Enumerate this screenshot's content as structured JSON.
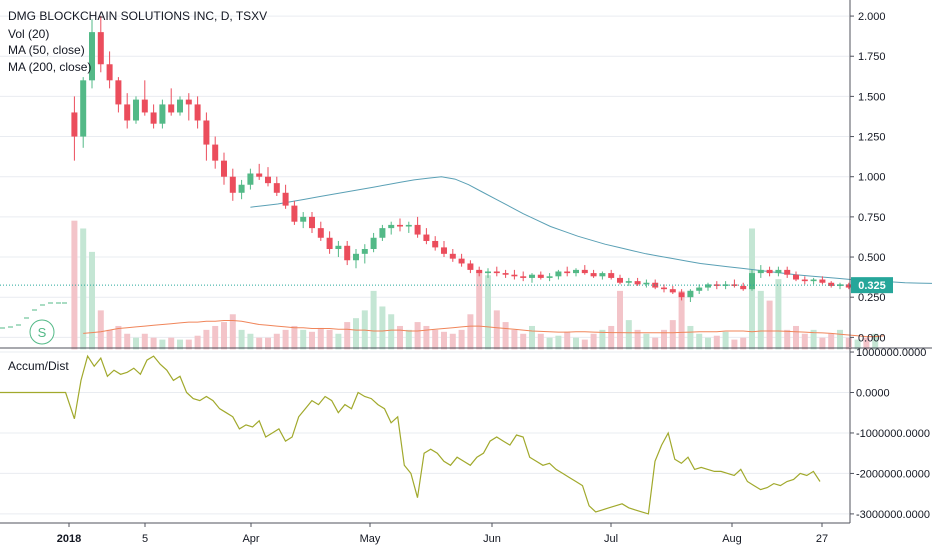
{
  "main_chart": {
    "title": "DMG BLOCKCHAIN SOLUTIONS INC, D, TSXV",
    "indicators": [
      "Vol (20)",
      "MA (50, close)",
      "MA (200, close)"
    ],
    "last_price_label": "0.325",
    "last_price": 0.325,
    "y_ticks": [
      "2.000",
      "1.750",
      "1.500",
      "1.250",
      "1.000",
      "0.750",
      "0.500",
      "0.250",
      "0.000"
    ],
    "y_tick_values": [
      2.0,
      1.75,
      1.5,
      1.25,
      1.0,
      0.75,
      0.5,
      0.25,
      0.0
    ],
    "watermark_icon": "tradingview-s-icon"
  },
  "sub_chart": {
    "title": "Accum/Dist",
    "y_ticks": [
      "1000000.0000",
      "0.0000",
      "-1000000.0000",
      "-2000000.0000",
      "-3000000.0000"
    ],
    "y_tick_values": [
      1000000,
      0,
      -1000000,
      -2000000,
      -3000000
    ]
  },
  "x_axis": {
    "labels": [
      "2018",
      "5",
      "Apr",
      "May",
      "Jun",
      "Jul",
      "Aug",
      "27"
    ],
    "bold_label_index": 0
  },
  "colors": {
    "up": "#53b987",
    "down": "#eb4d5c",
    "up_volume": "#c4e6d4",
    "down_volume": "#f3c4c9",
    "ma50": "#f0855a",
    "ma200": "#5aa0b5",
    "accum": "#a1a92c",
    "price_badge": "#26a69a",
    "grid": "#e9ecf1",
    "axis": "#50535e"
  },
  "chart_data": [
    {
      "type": "candlestick",
      "title": "DMG BLOCKCHAIN SOLUTIONS INC, D, TSXV",
      "y_range": [
        -0.06,
        2.1
      ],
      "ohlc": [
        [
          1.4,
          1.5,
          1.1,
          1.25
        ],
        [
          1.25,
          1.62,
          1.18,
          1.6
        ],
        [
          1.6,
          1.98,
          1.55,
          1.9
        ],
        [
          1.9,
          2.0,
          1.65,
          1.7
        ],
        [
          1.7,
          1.78,
          1.55,
          1.6
        ],
        [
          1.6,
          1.62,
          1.4,
          1.45
        ],
        [
          1.45,
          1.52,
          1.3,
          1.35
        ],
        [
          1.35,
          1.5,
          1.33,
          1.48
        ],
        [
          1.48,
          1.6,
          1.38,
          1.4
        ],
        [
          1.4,
          1.45,
          1.3,
          1.33
        ],
        [
          1.33,
          1.48,
          1.3,
          1.45
        ],
        [
          1.45,
          1.55,
          1.38,
          1.4
        ],
        [
          1.4,
          1.5,
          1.38,
          1.48
        ],
        [
          1.48,
          1.52,
          1.35,
          1.45
        ],
        [
          1.45,
          1.5,
          1.3,
          1.35
        ],
        [
          1.35,
          1.4,
          1.1,
          1.2
        ],
        [
          1.2,
          1.25,
          1.05,
          1.1
        ],
        [
          1.1,
          1.15,
          0.95,
          1.0
        ],
        [
          1.0,
          1.05,
          0.85,
          0.9
        ],
        [
          0.9,
          0.98,
          0.86,
          0.95
        ],
        [
          0.95,
          1.05,
          0.92,
          1.02
        ],
        [
          1.02,
          1.08,
          0.98,
          1.0
        ],
        [
          1.0,
          1.06,
          0.94,
          0.96
        ],
        [
          0.96,
          1.0,
          0.88,
          0.9
        ],
        [
          0.9,
          0.95,
          0.8,
          0.82
        ],
        [
          0.82,
          0.85,
          0.7,
          0.72
        ],
        [
          0.72,
          0.78,
          0.68,
          0.75
        ],
        [
          0.75,
          0.78,
          0.65,
          0.68
        ],
        [
          0.68,
          0.72,
          0.6,
          0.62
        ],
        [
          0.62,
          0.66,
          0.52,
          0.55
        ],
        [
          0.55,
          0.6,
          0.5,
          0.57
        ],
        [
          0.57,
          0.6,
          0.45,
          0.48
        ],
        [
          0.48,
          0.55,
          0.43,
          0.52
        ],
        [
          0.52,
          0.58,
          0.46,
          0.55
        ],
        [
          0.55,
          0.65,
          0.53,
          0.62
        ],
        [
          0.62,
          0.7,
          0.6,
          0.68
        ],
        [
          0.68,
          0.72,
          0.64,
          0.7
        ],
        [
          0.7,
          0.74,
          0.66,
          0.69
        ],
        [
          0.69,
          0.72,
          0.65,
          0.7
        ],
        [
          0.7,
          0.75,
          0.62,
          0.64
        ],
        [
          0.64,
          0.68,
          0.58,
          0.6
        ],
        [
          0.6,
          0.63,
          0.54,
          0.56
        ],
        [
          0.56,
          0.6,
          0.5,
          0.52
        ],
        [
          0.52,
          0.55,
          0.47,
          0.49
        ],
        [
          0.49,
          0.52,
          0.44,
          0.46
        ],
        [
          0.46,
          0.48,
          0.4,
          0.42
        ],
        [
          0.42,
          0.44,
          0.38,
          0.4
        ],
        [
          0.4,
          0.43,
          0.37,
          0.41
        ],
        [
          0.41,
          0.44,
          0.38,
          0.4
        ],
        [
          0.4,
          0.42,
          0.37,
          0.39
        ],
        [
          0.39,
          0.42,
          0.36,
          0.38
        ],
        [
          0.38,
          0.41,
          0.35,
          0.37
        ],
        [
          0.37,
          0.4,
          0.34,
          0.39
        ],
        [
          0.39,
          0.41,
          0.36,
          0.37
        ],
        [
          0.37,
          0.4,
          0.35,
          0.38
        ],
        [
          0.38,
          0.42,
          0.36,
          0.41
        ],
        [
          0.41,
          0.44,
          0.38,
          0.4
        ],
        [
          0.4,
          0.43,
          0.38,
          0.42
        ],
        [
          0.42,
          0.45,
          0.39,
          0.4
        ],
        [
          0.4,
          0.42,
          0.37,
          0.38
        ],
        [
          0.38,
          0.41,
          0.36,
          0.4
        ],
        [
          0.4,
          0.42,
          0.36,
          0.37
        ],
        [
          0.37,
          0.39,
          0.33,
          0.34
        ],
        [
          0.34,
          0.37,
          0.32,
          0.35
        ],
        [
          0.35,
          0.37,
          0.32,
          0.33
        ],
        [
          0.33,
          0.36,
          0.31,
          0.34
        ],
        [
          0.34,
          0.36,
          0.3,
          0.31
        ],
        [
          0.31,
          0.33,
          0.28,
          0.3
        ],
        [
          0.3,
          0.32,
          0.27,
          0.28
        ],
        [
          0.28,
          0.3,
          0.23,
          0.25
        ],
        [
          0.25,
          0.3,
          0.22,
          0.29
        ],
        [
          0.29,
          0.33,
          0.27,
          0.31
        ],
        [
          0.31,
          0.34,
          0.29,
          0.33
        ],
        [
          0.33,
          0.35,
          0.3,
          0.32
        ],
        [
          0.32,
          0.35,
          0.3,
          0.33
        ],
        [
          0.33,
          0.36,
          0.31,
          0.32
        ],
        [
          0.32,
          0.34,
          0.29,
          0.3
        ],
        [
          0.3,
          0.42,
          0.29,
          0.4
        ],
        [
          0.4,
          0.45,
          0.37,
          0.42
        ],
        [
          0.42,
          0.44,
          0.38,
          0.4
        ],
        [
          0.4,
          0.44,
          0.38,
          0.42
        ],
        [
          0.42,
          0.44,
          0.37,
          0.39
        ],
        [
          0.39,
          0.41,
          0.35,
          0.36
        ],
        [
          0.36,
          0.38,
          0.33,
          0.35
        ],
        [
          0.35,
          0.37,
          0.33,
          0.36
        ],
        [
          0.36,
          0.38,
          0.33,
          0.34
        ],
        [
          0.34,
          0.35,
          0.31,
          0.32
        ],
        [
          0.32,
          0.34,
          0.3,
          0.33
        ],
        [
          0.33,
          0.34,
          0.3,
          0.31
        ],
        [
          0.31,
          0.33,
          0.3,
          0.32
        ],
        [
          0.32,
          0.33,
          0.29,
          0.3
        ],
        [
          0.3,
          0.35,
          0.29,
          0.325
        ]
      ],
      "volume_max_price_units": 0.89,
      "volume": [
        0.66,
        0.62,
        0.5,
        0.2,
        0.1,
        0.12,
        0.08,
        0.06,
        0.08,
        0.06,
        0.05,
        0.06,
        0.05,
        0.05,
        0.07,
        0.1,
        0.12,
        0.14,
        0.18,
        0.1,
        0.08,
        0.06,
        0.06,
        0.08,
        0.1,
        0.12,
        0.1,
        0.09,
        0.11,
        0.1,
        0.08,
        0.14,
        0.16,
        0.2,
        0.3,
        0.22,
        0.18,
        0.12,
        0.1,
        0.14,
        0.12,
        0.1,
        0.09,
        0.08,
        0.1,
        0.18,
        0.4,
        0.38,
        0.2,
        0.14,
        0.1,
        0.08,
        0.12,
        0.08,
        0.06,
        0.07,
        0.09,
        0.06,
        0.05,
        0.08,
        0.1,
        0.12,
        0.3,
        0.15,
        0.1,
        0.08,
        0.06,
        0.1,
        0.15,
        0.3,
        0.12,
        0.08,
        0.06,
        0.07,
        0.09,
        0.05,
        0.06,
        0.62,
        0.3,
        0.25,
        0.36,
        0.1,
        0.12,
        0.08,
        0.1,
        0.06,
        0.08,
        0.1,
        0.06,
        0.05,
        0.06,
        0.08
      ],
      "ma50_start_index": 36,
      "ma50": [
        0.81,
        0.82,
        0.83,
        0.845,
        0.86,
        0.875,
        0.89,
        0.905,
        0.92,
        0.935,
        0.95,
        0.965,
        0.98,
        0.99,
        1.0,
        0.985,
        0.95,
        0.905,
        0.86,
        0.815,
        0.77,
        0.73,
        0.69,
        0.66,
        0.63,
        0.605,
        0.58,
        0.56,
        0.54,
        0.52,
        0.505,
        0.49,
        0.475,
        0.46,
        0.45,
        0.44,
        0.43,
        0.42,
        0.41,
        0.4,
        0.39,
        0.382,
        0.375,
        0.368,
        0.36,
        0.355,
        0.35,
        0.345,
        0.34,
        0.338,
        0.336,
        0.334,
        0.333,
        0.332,
        0.331,
        0.33
      ],
      "ma200": [
        0.0,
        0.005,
        0.01,
        0.02,
        0.03,
        0.035,
        0.04,
        0.045,
        0.05,
        0.055,
        0.06,
        0.065,
        0.07,
        0.07,
        0.075,
        0.075,
        0.08,
        0.08,
        0.075,
        0.065,
        0.055,
        0.05,
        0.045,
        0.04,
        0.035,
        0.035,
        0.03,
        0.03,
        0.03,
        0.025,
        0.025,
        0.02,
        0.02,
        0.015,
        0.015,
        0.02,
        0.02,
        0.015,
        0.015,
        0.02,
        0.025,
        0.03,
        0.035,
        0.04,
        0.045,
        0.045,
        0.04,
        0.035,
        0.03,
        0.025,
        0.02,
        0.015,
        0.012,
        0.01,
        0.008,
        0.008,
        0.01,
        0.01,
        0.008,
        0.006,
        0.005,
        0.005,
        0.004,
        0.004,
        0.004,
        0.004,
        0.004,
        0.004,
        0.006,
        0.008,
        0.01,
        0.01,
        0.01,
        0.015,
        0.015,
        0.015,
        0.01,
        0.015,
        0.015,
        0.015,
        0.012,
        0.01,
        0.008,
        0.005,
        0.003,
        0.0,
        -0.005,
        -0.01,
        -0.015,
        -0.02,
        -0.02,
        -0.015
      ]
    },
    {
      "type": "line",
      "title": "Accum/Dist",
      "y_range": [
        -3200000,
        1050000
      ],
      "values": [
        -650000,
        300000,
        900000,
        650000,
        850000,
        400000,
        550000,
        450000,
        500000,
        600000,
        450000,
        800000,
        900000,
        700000,
        550000,
        300000,
        400000,
        0,
        -150000,
        -200000,
        -100000,
        -200000,
        -400000,
        -500000,
        -600000,
        -900000,
        -800000,
        -850000,
        -700000,
        -1100000,
        -1000000,
        -900000,
        -1200000,
        -1100000,
        -600000,
        -400000,
        -200000,
        -300000,
        -100000,
        -200000,
        -500000,
        -300000,
        -400000,
        0,
        -100000,
        -150000,
        -300000,
        -400000,
        -750000,
        -600000,
        -1800000,
        -2000000,
        -2600000,
        -1500000,
        -1400000,
        -1500000,
        -1700000,
        -1800000,
        -1600000,
        -1700000,
        -1800000,
        -1600000,
        -1500000,
        -1200000,
        -1100000,
        -1200000,
        -1300000,
        -1050000,
        -1100000,
        -1600000,
        -1700000,
        -1800000,
        -1750000,
        -1900000,
        -2000000,
        -2100000,
        -2200000,
        -2300000,
        -2800000,
        -2950000,
        -2900000,
        -2850000,
        -2800000,
        -2750000,
        -2850000,
        -2900000,
        -2950000,
        -3000000,
        -1700000,
        -1300000,
        -1000000,
        -1650000,
        -1750000,
        -1600000,
        -1900000,
        -1850000,
        -1900000,
        -1950000,
        -1950000,
        -2000000,
        -2050000,
        -1900000,
        -2200000,
        -2300000,
        -2400000,
        -2350000,
        -2250000,
        -2300000,
        -2200000,
        -2150000,
        -2000000,
        -2050000,
        -1950000,
        -2200000
      ]
    }
  ]
}
